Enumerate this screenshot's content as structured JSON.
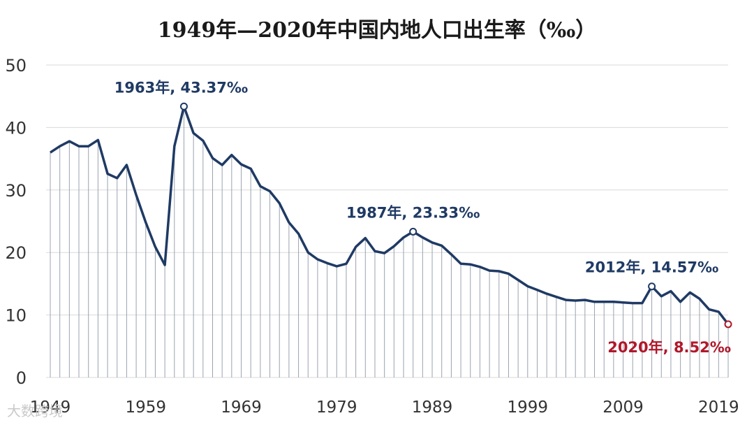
{
  "chart_data": {
    "type": "line",
    "title": "1949年—2020年中国内地人口出生率（‰）",
    "xlabel": "",
    "ylabel": "",
    "ylim": [
      0,
      50
    ],
    "xlim": [
      1949,
      2020
    ],
    "grid": true,
    "y_ticks": [
      "0",
      "10",
      "20",
      "30",
      "40",
      "50"
    ],
    "x_ticks": [
      "1949",
      "1959",
      "1969",
      "1979",
      "1989",
      "1999",
      "2009",
      "2019"
    ],
    "series": [
      {
        "color": "#1f3a64",
        "x": [
          1949,
          1950,
          1951,
          1952,
          1953,
          1954,
          1955,
          1956,
          1957,
          1958,
          1959,
          1960,
          1961,
          1962,
          1963,
          1964,
          1965,
          1966,
          1967,
          1968,
          1969,
          1970,
          1971,
          1972,
          1973,
          1974,
          1975,
          1976,
          1977,
          1978,
          1979,
          1980,
          1981,
          1982,
          1983,
          1984,
          1985,
          1986,
          1987,
          1988,
          1989,
          1990,
          1991,
          1992,
          1993,
          1994,
          1995,
          1996,
          1997,
          1998,
          1999,
          2000,
          2001,
          2002,
          2003,
          2004,
          2005,
          2006,
          2007,
          2008,
          2009,
          2010,
          2011,
          2012,
          2013,
          2014,
          2015,
          2016,
          2017,
          2018,
          2019,
          2020
        ],
        "values": [
          36.0,
          37.0,
          37.8,
          37.0,
          37.0,
          38.0,
          32.6,
          31.9,
          34.0,
          29.2,
          24.8,
          20.9,
          18.0,
          37.0,
          43.37,
          39.1,
          37.9,
          35.1,
          34.0,
          35.6,
          34.1,
          33.4,
          30.6,
          29.8,
          27.9,
          24.8,
          23.0,
          20.0,
          18.9,
          18.3,
          17.8,
          18.2,
          20.9,
          22.3,
          20.2,
          19.9,
          21.0,
          22.4,
          23.33,
          22.4,
          21.6,
          21.1,
          19.7,
          18.2,
          18.1,
          17.7,
          17.1,
          17.0,
          16.6,
          15.6,
          14.6,
          14.0,
          13.4,
          12.9,
          12.4,
          12.3,
          12.4,
          12.1,
          12.1,
          12.1,
          12.0,
          11.9,
          11.9,
          14.57,
          13.0,
          13.8,
          12.1,
          13.6,
          12.6,
          10.9,
          10.5,
          8.52
        ]
      }
    ],
    "annotations": [
      {
        "x": 1963,
        "y": 43.37,
        "text": "1963年, 43.37‰",
        "color": "#1f3a64"
      },
      {
        "x": 1987,
        "y": 23.33,
        "text": "1987年, 23.33‰",
        "color": "#1f3a64"
      },
      {
        "x": 2012,
        "y": 14.57,
        "text": "2012年, 14.57‰",
        "color": "#1f3a64"
      },
      {
        "x": 2020,
        "y": 8.52,
        "text": "2020年, 8.52‰",
        "color": "#b0182a"
      }
    ]
  },
  "watermark": "大数跨境"
}
